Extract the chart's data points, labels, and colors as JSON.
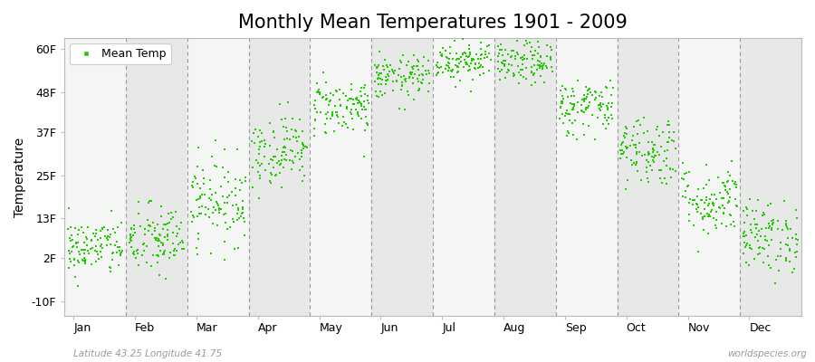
{
  "title": "Monthly Mean Temperatures 1901 - 2009",
  "ylabel": "Temperature",
  "yticks": [
    -10,
    2,
    13,
    25,
    37,
    48,
    60
  ],
  "ytick_labels": [
    "-10F",
    "2F",
    "13F",
    "25F",
    "37F",
    "48F",
    "60F"
  ],
  "ylim": [
    -14,
    63
  ],
  "months": [
    "Jan",
    "Feb",
    "Mar",
    "Apr",
    "May",
    "Jun",
    "Jul",
    "Aug",
    "Sep",
    "Oct",
    "Nov",
    "Dec"
  ],
  "dot_color": "#22cc00",
  "dot_size": 3,
  "background_color": "#ffffff",
  "plot_bg_color": "#ffffff",
  "band_colors": [
    "#f5f5f5",
    "#e8e8e8"
  ],
  "legend_label": "Mean Temp",
  "subtitle_left": "Latitude 43.25 Longitude 41.75",
  "subtitle_right": "worldspecies.org",
  "mean_temps_F": [
    5,
    7,
    18,
    32,
    44,
    52,
    57,
    56,
    44,
    32,
    18,
    8
  ],
  "std_temps_F": [
    4,
    5,
    6,
    5,
    4,
    3,
    3,
    3,
    4,
    5,
    5,
    5
  ],
  "n_years": 109,
  "title_fontsize": 15,
  "axis_fontsize": 10,
  "tick_fontsize": 9
}
